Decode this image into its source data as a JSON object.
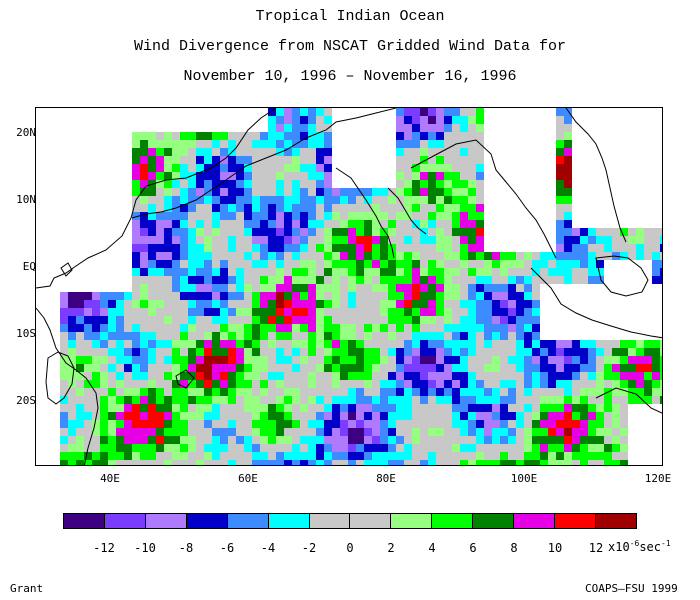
{
  "title": {
    "line1": "Tropical Indian Ocean",
    "line2": "Wind Divergence from NSCAT Gridded Wind Data for",
    "line3": "November 10, 1996 – November 16, 1996"
  },
  "axes": {
    "lat_labels": [
      "20N",
      "10N",
      "EQ",
      "10S",
      "20S"
    ],
    "lon_labels": [
      "40E",
      "60E",
      "80E",
      "100E",
      "120E"
    ],
    "lon_range": [
      30,
      121
    ],
    "lat_range": [
      -30,
      25
    ]
  },
  "legend": {
    "colors": [
      "#3d0080",
      "#7a3cff",
      "#b07aff",
      "#0000c8",
      "#3c8cff",
      "#00ffff",
      "#c8c8c8",
      "#c8c8c8",
      "#96ff82",
      "#00ff00",
      "#008200",
      "#e600e6",
      "#ff0000",
      "#a00000"
    ],
    "labels": [
      "-12",
      "-10",
      "-8",
      "-6",
      "-4",
      "-2",
      "0",
      "2",
      "4",
      "6",
      "8",
      "10",
      "12"
    ],
    "unit_prefix": "x10",
    "unit_exp": "-6",
    "unit_suffix": "sec",
    "unit_exp2": "-1"
  },
  "footer": {
    "left": "Grant",
    "right": "COAPS–FSU 1999"
  }
}
